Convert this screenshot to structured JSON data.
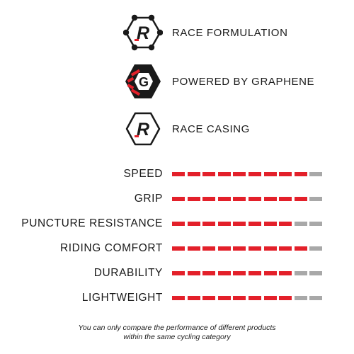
{
  "features": [
    {
      "icon": "race-formulation-icon",
      "label": "RACE FORMULATION"
    },
    {
      "icon": "graphene-icon",
      "label": "POWERED BY GRAPHENE"
    },
    {
      "icon": "race-casing-icon",
      "label": "RACE CASING"
    }
  ],
  "icon_letters": {
    "race": "R",
    "graphene": "G"
  },
  "ratings": [
    {
      "label": "SPEED",
      "score": 9,
      "max": 10
    },
    {
      "label": "GRIP",
      "score": 9,
      "max": 10
    },
    {
      "label": "PUNCTURE RESISTANCE",
      "score": 8,
      "max": 10
    },
    {
      "label": "RIDING COMFORT",
      "score": 9,
      "max": 10
    },
    {
      "label": "DURABILITY",
      "score": 8,
      "max": 10
    },
    {
      "label": "LIGHTWEIGHT",
      "score": 8,
      "max": 10
    }
  ],
  "footnote": {
    "line1": "You can only compare the performance of different products",
    "line2": "within the same cycling category"
  },
  "colors": {
    "filled": "#e3202a",
    "empty": "#a8a8a8",
    "text": "#1a1a1a"
  }
}
